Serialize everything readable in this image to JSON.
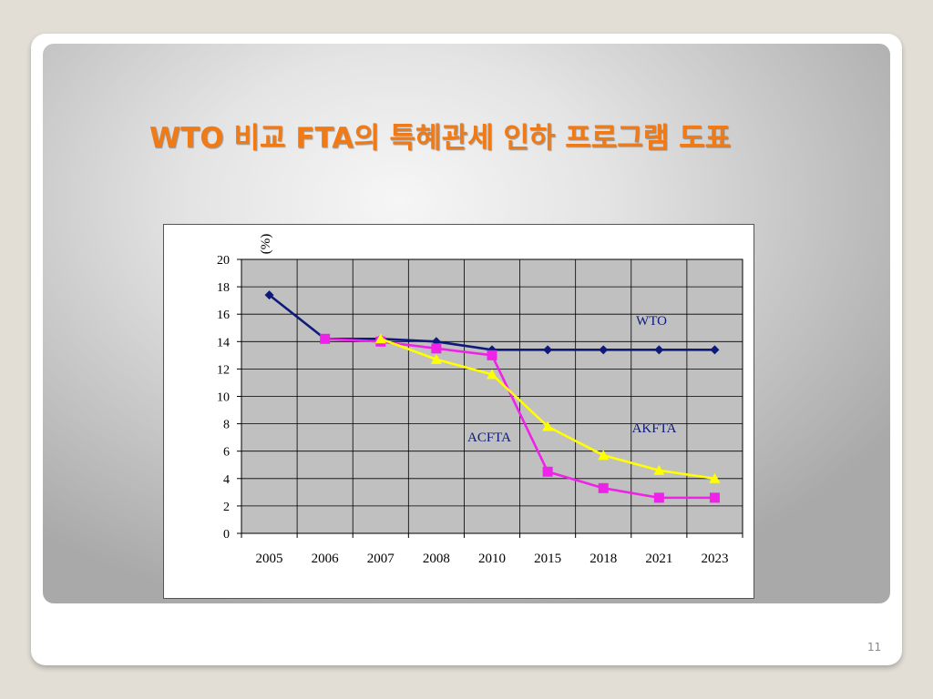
{
  "slide": {
    "title": "WTO 비교 FTA의 특혜관세 인하 프로그램 도표",
    "page_number": "11"
  },
  "chart_data": {
    "type": "line",
    "ylabel": "(%)",
    "ylim": [
      0,
      20
    ],
    "yticks": [
      0,
      2,
      4,
      6,
      8,
      10,
      12,
      14,
      16,
      18,
      20
    ],
    "categories": [
      "2005",
      "2006",
      "2007",
      "2008",
      "2010",
      "2015",
      "2018",
      "2021",
      "2023"
    ],
    "grid": true,
    "series": [
      {
        "name": "WTO",
        "color": "#0d1a7a",
        "marker": "diamond",
        "values": [
          17.4,
          14.2,
          14.2,
          14.0,
          13.4,
          13.4,
          13.4,
          13.4,
          13.4
        ]
      },
      {
        "name": "ACFTA",
        "color": "#ee22e8",
        "marker": "square",
        "values": [
          null,
          14.2,
          14.0,
          13.5,
          13.0,
          4.5,
          3.3,
          2.6,
          2.6
        ]
      },
      {
        "name": "AKFTA",
        "color": "#ffff00",
        "marker": "triangle",
        "values": [
          null,
          null,
          14.2,
          12.7,
          11.6,
          7.8,
          5.7,
          4.6,
          4.0
        ]
      }
    ]
  }
}
